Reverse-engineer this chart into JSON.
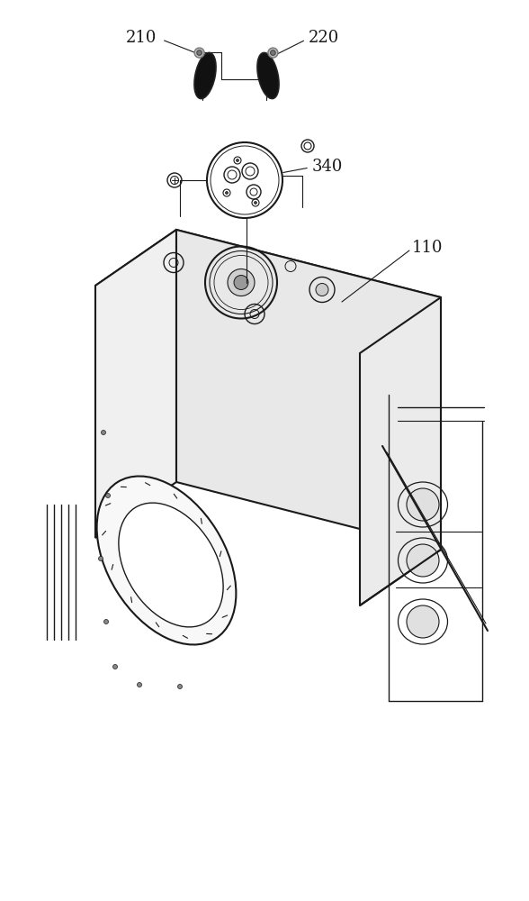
{
  "bg_color": "#ffffff",
  "line_color": "#1a1a1a",
  "line_width": 1.0,
  "label_210": "210",
  "label_220": "220",
  "label_340": "340",
  "label_110": "110",
  "font_size_labels": 13,
  "fig_width": 5.88,
  "fig_height": 10.0,
  "dpi": 100
}
